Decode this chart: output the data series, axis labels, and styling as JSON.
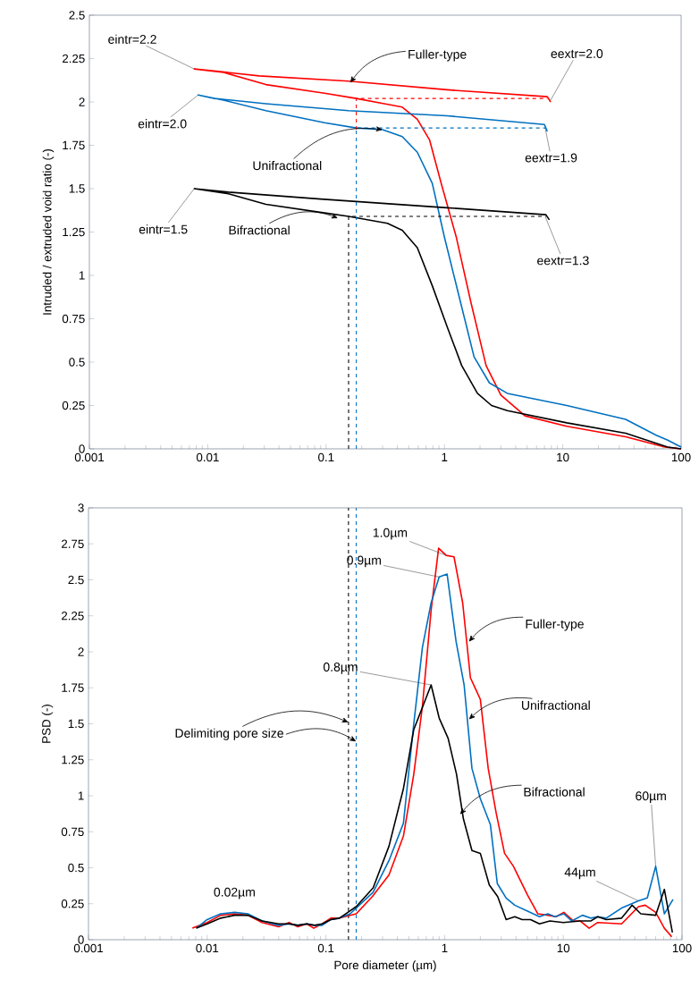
{
  "chart_data": [
    {
      "type": "line",
      "ylabel": "Intruded / extruded void ratio (-)",
      "log": "x",
      "xlim": [
        0.001,
        100
      ],
      "ylim": [
        0,
        2.5
      ],
      "xticks": [
        0.001,
        0.01,
        0.1,
        1,
        10,
        100
      ],
      "yticks": [
        0,
        0.25,
        0.5,
        0.75,
        1,
        1.25,
        1.5,
        1.75,
        2,
        2.25,
        2.5
      ],
      "series": [
        {
          "color": "#ff0000",
          "x": [
            100,
            73,
            34,
            10.8,
            4.8,
            3.0,
            2.25,
            1.68,
            1.26,
            0.94,
            0.75,
            0.59,
            0.44,
            0.31,
            0.18,
            0.097,
            0.031,
            0.0136,
            0.0077,
            0.0108,
            0.0272,
            0.155,
            1.05,
            7.4,
            7.9
          ],
          "values": [
            0,
            0.01,
            0.07,
            0.13,
            0.19,
            0.31,
            0.48,
            0.84,
            1.22,
            1.53,
            1.78,
            1.9,
            1.97,
            1.99,
            2.02,
            2.05,
            2.1,
            2.17,
            2.19,
            2.18,
            2.15,
            2.12,
            2.07,
            2.03,
            2.0
          ]
        },
        {
          "color": "#0070c0",
          "x": [
            100,
            77,
            61,
            34,
            10.8,
            3.4,
            2.4,
            1.78,
            1.34,
            1.0,
            0.79,
            0.59,
            0.44,
            0.3,
            0.18,
            0.097,
            0.031,
            0.0136,
            0.0083,
            0.0114,
            0.031,
            0.155,
            1.05,
            7.0,
            7.4
          ],
          "values": [
            0.01,
            0.05,
            0.08,
            0.17,
            0.25,
            0.32,
            0.38,
            0.53,
            0.87,
            1.22,
            1.53,
            1.71,
            1.8,
            1.84,
            1.85,
            1.88,
            1.95,
            2.01,
            2.04,
            2.02,
            1.99,
            1.95,
            1.92,
            1.87,
            1.83
          ]
        },
        {
          "color": "#000000",
          "x": [
            100,
            77,
            34,
            10.8,
            3.4,
            2.5,
            1.9,
            1.4,
            1.06,
            0.79,
            0.59,
            0.44,
            0.33,
            0.155,
            0.097,
            0.031,
            0.015,
            0.0077,
            0.015,
            0.09,
            1.05,
            7.2,
            7.7
          ],
          "values": [
            0,
            0.01,
            0.09,
            0.15,
            0.22,
            0.25,
            0.32,
            0.48,
            0.7,
            0.94,
            1.16,
            1.26,
            1.3,
            1.34,
            1.36,
            1.41,
            1.47,
            1.5,
            1.48,
            1.44,
            1.39,
            1.35,
            1.32
          ]
        },
        {
          "color": "#ff0000",
          "line_style": "dashed",
          "x": [
            0.18,
            0.18,
            7.4
          ],
          "values": [
            1.84,
            2.02,
            2.02
          ]
        },
        {
          "color": "#0070c0",
          "line_style": "dashed",
          "x": [
            0.18,
            0.18,
            7.2
          ],
          "values": [
            0,
            1.85,
            1.85
          ]
        },
        {
          "color": "#000000",
          "line_style": "dashed",
          "x": [
            0.155,
            0.155,
            7.2
          ],
          "values": [
            0,
            1.34,
            1.34
          ]
        }
      ],
      "annotations": [
        {
          "text": "eintr=2.2",
          "x": 0.0077,
          "y": 2.19
        },
        {
          "text": "eintr=2.0",
          "x": 0.0083,
          "y": 2.04
        },
        {
          "text": "eintr=1.5",
          "x": 0.0077,
          "y": 1.5
        },
        {
          "text": "Fuller-type",
          "x": 0.16,
          "y": 2.11
        },
        {
          "text": "Unifractional",
          "x": 0.3,
          "y": 1.84
        },
        {
          "text": "Bifractional",
          "x": 0.126,
          "y": 1.33
        },
        {
          "text": "eextr=2.0",
          "x": 7.9,
          "y": 2.01
        },
        {
          "text": "eextr=1.9",
          "x": 7.1,
          "y": 1.85
        },
        {
          "text": "eextr=1.3",
          "x": 7.1,
          "y": 1.34
        }
      ]
    },
    {
      "type": "line",
      "xlabel": "Pore diameter (µm)",
      "ylabel": "PSD (-)",
      "log": "x",
      "xlim": [
        0.001,
        100
      ],
      "ylim": [
        0,
        3
      ],
      "xticks": [
        0.001,
        0.01,
        0.1,
        1,
        10,
        100
      ],
      "yticks": [
        0,
        0.25,
        0.5,
        0.75,
        1,
        1.25,
        1.5,
        1.75,
        2,
        2.25,
        2.5,
        2.75,
        3
      ],
      "series": [
        {
          "color": "#ff0000",
          "x": [
            0.0075,
            0.01,
            0.013,
            0.017,
            0.022,
            0.029,
            0.04,
            0.049,
            0.058,
            0.069,
            0.079,
            0.093,
            0.11,
            0.13,
            0.18,
            0.246,
            0.34,
            0.45,
            0.55,
            0.65,
            0.77,
            0.89,
            1.03,
            1.2,
            1.42,
            1.65,
            2.0,
            2.33,
            2.72,
            3.2,
            3.8,
            5.0,
            6.1,
            7.4,
            8.7,
            10.1,
            12.2,
            13.9,
            16.5,
            19.5,
            31,
            43,
            49,
            60,
            71,
            82
          ],
          "values": [
            0.08,
            0.12,
            0.17,
            0.18,
            0.17,
            0.12,
            0.09,
            0.12,
            0.09,
            0.11,
            0.08,
            0.11,
            0.15,
            0.15,
            0.18,
            0.3,
            0.45,
            0.72,
            1.15,
            1.62,
            2.29,
            2.72,
            2.67,
            2.66,
            2.34,
            1.82,
            1.67,
            1.19,
            0.88,
            0.6,
            0.51,
            0.31,
            0.18,
            0.17,
            0.16,
            0.19,
            0.13,
            0.13,
            0.08,
            0.12,
            0.11,
            0.23,
            0.24,
            0.19,
            0.08,
            0.02
          ]
        },
        {
          "color": "#0070c0",
          "x": [
            0.0081,
            0.01,
            0.013,
            0.017,
            0.022,
            0.029,
            0.04,
            0.049,
            0.058,
            0.069,
            0.08,
            0.093,
            0.11,
            0.13,
            0.16,
            0.25,
            0.34,
            0.45,
            0.55,
            0.65,
            0.77,
            0.9,
            1.05,
            1.25,
            1.46,
            1.7,
            2.0,
            2.43,
            2.78,
            3.3,
            3.9,
            6.3,
            7.4,
            8.5,
            10.1,
            11.8,
            14.5,
            17,
            19.5,
            23,
            31,
            43,
            51,
            60,
            71,
            84
          ],
          "values": [
            0.08,
            0.14,
            0.18,
            0.19,
            0.18,
            0.13,
            0.1,
            0.11,
            0.1,
            0.11,
            0.1,
            0.1,
            0.14,
            0.15,
            0.18,
            0.33,
            0.55,
            0.81,
            1.5,
            2.03,
            2.34,
            2.52,
            2.54,
            2.07,
            1.77,
            1.19,
            0.98,
            0.8,
            0.39,
            0.29,
            0.24,
            0.16,
            0.18,
            0.16,
            0.18,
            0.13,
            0.17,
            0.15,
            0.16,
            0.15,
            0.22,
            0.27,
            0.29,
            0.51,
            0.18,
            0.28
          ]
        },
        {
          "color": "#000000",
          "x": [
            0.0081,
            0.01,
            0.013,
            0.017,
            0.022,
            0.029,
            0.04,
            0.049,
            0.058,
            0.069,
            0.08,
            0.093,
            0.11,
            0.13,
            0.18,
            0.25,
            0.34,
            0.45,
            0.55,
            0.77,
            0.9,
            1.07,
            1.26,
            1.44,
            1.7,
            2.0,
            2.38,
            2.8,
            3.3,
            3.9,
            4.5,
            5.3,
            6.3,
            7.7,
            10,
            13.9,
            17,
            19.5,
            23,
            31,
            38,
            45,
            60,
            71,
            83
          ],
          "values": [
            0.08,
            0.11,
            0.15,
            0.17,
            0.17,
            0.13,
            0.11,
            0.11,
            0.1,
            0.11,
            0.1,
            0.11,
            0.14,
            0.15,
            0.23,
            0.36,
            0.65,
            1.05,
            1.46,
            1.77,
            1.54,
            1.4,
            1.15,
            0.84,
            0.62,
            0.6,
            0.38,
            0.3,
            0.14,
            0.16,
            0.14,
            0.14,
            0.11,
            0.13,
            0.12,
            0.13,
            0.13,
            0.16,
            0.14,
            0.15,
            0.24,
            0.18,
            0.17,
            0.35,
            0.05
          ]
        }
      ],
      "ref_lines": [
        {
          "axis": "x",
          "value": 0.155,
          "color": "#000000",
          "line_style": "dashed"
        },
        {
          "axis": "x",
          "value": 0.18,
          "color": "#0070c0",
          "line_style": "dashed"
        }
      ],
      "annotations": [
        {
          "text": "1.0µm",
          "x": 1.03,
          "y": 2.67
        },
        {
          "text": "0.9µm",
          "x": 0.9,
          "y": 2.52
        },
        {
          "text": "0.8µm",
          "x": 0.77,
          "y": 1.77
        },
        {
          "text": "0.02µm",
          "x": 0.017,
          "y": 0.19
        },
        {
          "text": "44µm",
          "x": 43,
          "y": 0.27
        },
        {
          "text": "60µm",
          "x": 60,
          "y": 0.51
        },
        {
          "text": "Fuller-type",
          "x": 1.6,
          "y": 2.07
        },
        {
          "text": "Unifractional",
          "x": 1.6,
          "y": 1.53
        },
        {
          "text": "Bifractional",
          "x": 1.35,
          "y": 0.87
        },
        {
          "text": "Delimiting pore size",
          "x": 0.155,
          "y": 1.51
        }
      ]
    }
  ]
}
